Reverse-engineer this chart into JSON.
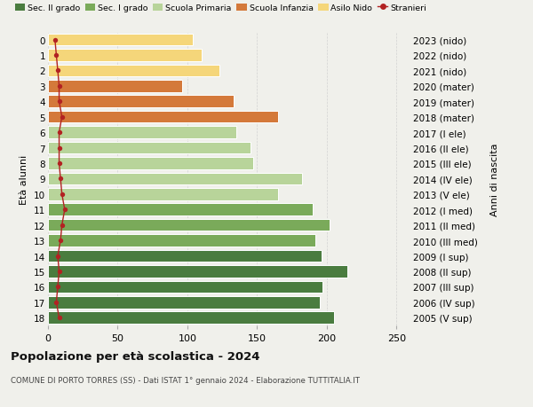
{
  "ages": [
    0,
    1,
    2,
    3,
    4,
    5,
    6,
    7,
    8,
    9,
    10,
    11,
    12,
    13,
    14,
    15,
    16,
    17,
    18
  ],
  "right_labels": [
    "2023 (nido)",
    "2022 (nido)",
    "2021 (nido)",
    "2020 (mater)",
    "2019 (mater)",
    "2018 (mater)",
    "2017 (I ele)",
    "2016 (II ele)",
    "2015 (III ele)",
    "2014 (IV ele)",
    "2013 (V ele)",
    "2012 (I med)",
    "2011 (II med)",
    "2010 (III med)",
    "2009 (I sup)",
    "2008 (II sup)",
    "2007 (III sup)",
    "2006 (IV sup)",
    "2005 (V sup)"
  ],
  "values": [
    104,
    110,
    123,
    96,
    133,
    165,
    135,
    145,
    147,
    182,
    165,
    190,
    202,
    192,
    196,
    215,
    197,
    195,
    205
  ],
  "stranieri": [
    5,
    6,
    7,
    8,
    8,
    10,
    8,
    8,
    8,
    9,
    10,
    12,
    10,
    9,
    7,
    8,
    7,
    6,
    8
  ],
  "bar_colors": [
    "#f5d67a",
    "#f5d67a",
    "#f5d67a",
    "#d4793a",
    "#d4793a",
    "#d4793a",
    "#b8d49a",
    "#b8d49a",
    "#b8d49a",
    "#b8d49a",
    "#b8d49a",
    "#7aaa5a",
    "#7aaa5a",
    "#7aaa5a",
    "#4a7c3f",
    "#4a7c3f",
    "#4a7c3f",
    "#4a7c3f",
    "#4a7c3f"
  ],
  "legend_labels": [
    "Sec. II grado",
    "Sec. I grado",
    "Scuola Primaria",
    "Scuola Infanzia",
    "Asilo Nido",
    "Stranieri"
  ],
  "legend_colors": [
    "#4a7c3f",
    "#7aaa5a",
    "#b8d49a",
    "#d4793a",
    "#f5d67a",
    "#b22222"
  ],
  "stranieri_color": "#b22222",
  "title": "Popolazione per età scolastica - 2024",
  "subtitle": "COMUNE DI PORTO TORRES (SS) - Dati ISTAT 1° gennaio 2024 - Elaborazione TUTTITALIA.IT",
  "ylabel_left": "Età alunni",
  "ylabel_right": "Anni di nascita",
  "xlim": [
    0,
    260
  ],
  "xticks": [
    0,
    50,
    100,
    150,
    200,
    250
  ],
  "bg_color": "#f0f0eb"
}
